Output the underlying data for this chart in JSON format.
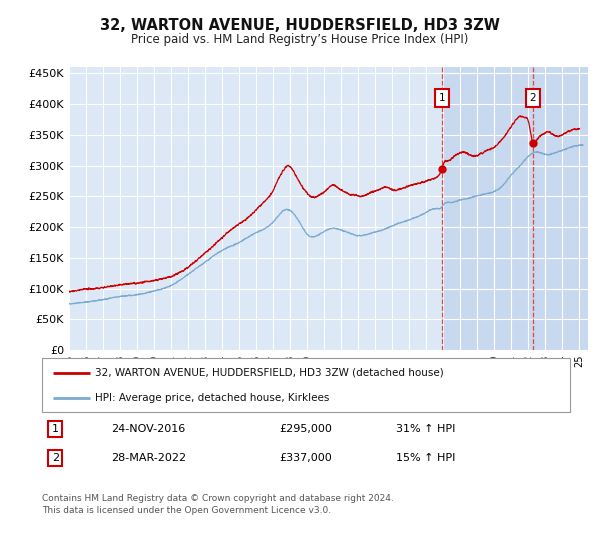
{
  "title": "32, WARTON AVENUE, HUDDERSFIELD, HD3 3ZW",
  "subtitle": "Price paid vs. HM Land Registry’s House Price Index (HPI)",
  "ylim": [
    0,
    460000
  ],
  "yticks": [
    0,
    50000,
    100000,
    150000,
    200000,
    250000,
    300000,
    350000,
    400000,
    450000
  ],
  "xlim_start": 1995.0,
  "xlim_end": 2025.5,
  "background_color": "#ffffff",
  "plot_bg_color": "#dce8f5",
  "plot_bg_color_shaded": "#c8d8ee",
  "grid_color": "#ffffff",
  "sale1_date_x": 2016.92,
  "sale1_price": 295000,
  "sale2_date_x": 2022.25,
  "sale2_price": 337000,
  "red_line_color": "#cc0000",
  "blue_line_color": "#7aaad0",
  "vline_color": "#ee3333",
  "legend_line1": "32, WARTON AVENUE, HUDDERSFIELD, HD3 3ZW (detached house)",
  "legend_line2": "HPI: Average price, detached house, Kirklees",
  "table_row1": [
    "1",
    "24-NOV-2016",
    "£295,000",
    "31% ↑ HPI"
  ],
  "table_row2": [
    "2",
    "28-MAR-2022",
    "£337,000",
    "15% ↑ HPI"
  ],
  "footnote": "Contains HM Land Registry data © Crown copyright and database right 2024.\nThis data is licensed under the Open Government Licence v3.0."
}
